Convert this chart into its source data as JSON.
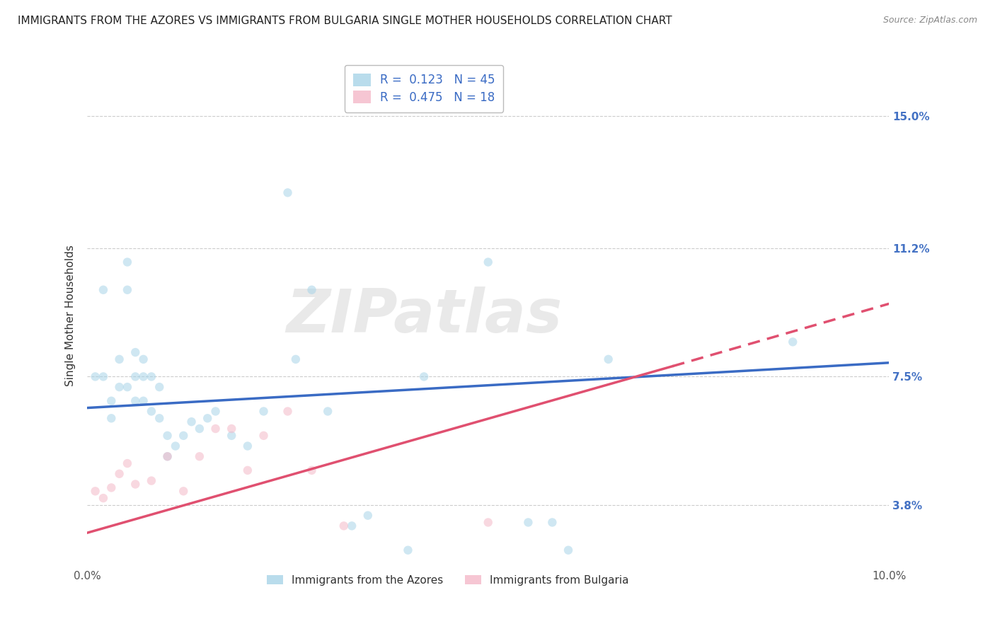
{
  "title": "IMMIGRANTS FROM THE AZORES VS IMMIGRANTS FROM BULGARIA SINGLE MOTHER HOUSEHOLDS CORRELATION CHART",
  "source": "Source: ZipAtlas.com",
  "ylabel": "Single Mother Households",
  "xlim": [
    0.0,
    0.1
  ],
  "ylim": [
    0.02,
    0.165
  ],
  "yticks": [
    0.038,
    0.075,
    0.112,
    0.15
  ],
  "ytick_labels": [
    "3.8%",
    "7.5%",
    "11.2%",
    "15.0%"
  ],
  "xticks": [
    0.0,
    0.02,
    0.04,
    0.06,
    0.08,
    0.1
  ],
  "watermark": "ZIPatlas",
  "legend_entries": [
    {
      "label": "R =  0.123   N = 45",
      "color": "#a8d4e8"
    },
    {
      "label": "R =  0.475   N = 18",
      "color": "#f4b8c8"
    }
  ],
  "series_azores": {
    "color": "#a8d4e8",
    "x": [
      0.001,
      0.002,
      0.002,
      0.003,
      0.003,
      0.004,
      0.004,
      0.005,
      0.005,
      0.005,
      0.006,
      0.006,
      0.006,
      0.007,
      0.007,
      0.007,
      0.008,
      0.008,
      0.009,
      0.009,
      0.01,
      0.01,
      0.011,
      0.012,
      0.013,
      0.014,
      0.015,
      0.016,
      0.018,
      0.02,
      0.022,
      0.025,
      0.026,
      0.028,
      0.03,
      0.033,
      0.035,
      0.04,
      0.042,
      0.05,
      0.055,
      0.058,
      0.06,
      0.065,
      0.088
    ],
    "y": [
      0.075,
      0.1,
      0.075,
      0.068,
      0.063,
      0.08,
      0.072,
      0.108,
      0.1,
      0.072,
      0.082,
      0.075,
      0.068,
      0.08,
      0.075,
      0.068,
      0.075,
      0.065,
      0.072,
      0.063,
      0.058,
      0.052,
      0.055,
      0.058,
      0.062,
      0.06,
      0.063,
      0.065,
      0.058,
      0.055,
      0.065,
      0.128,
      0.08,
      0.1,
      0.065,
      0.032,
      0.035,
      0.025,
      0.075,
      0.108,
      0.033,
      0.033,
      0.025,
      0.08,
      0.085
    ]
  },
  "series_bulgaria": {
    "color": "#f4b8c8",
    "x": [
      0.001,
      0.002,
      0.003,
      0.004,
      0.005,
      0.006,
      0.008,
      0.01,
      0.012,
      0.014,
      0.016,
      0.018,
      0.02,
      0.022,
      0.025,
      0.028,
      0.032,
      0.05
    ],
    "y": [
      0.042,
      0.04,
      0.043,
      0.047,
      0.05,
      0.044,
      0.045,
      0.052,
      0.042,
      0.052,
      0.06,
      0.06,
      0.048,
      0.058,
      0.065,
      0.048,
      0.032,
      0.033
    ]
  },
  "trend_azores": {
    "color": "#3a6bc4",
    "x_start": 0.0,
    "x_end": 0.1,
    "y_start": 0.066,
    "y_end": 0.079
  },
  "trend_bulgaria_solid": {
    "color": "#e05070",
    "x_start": 0.0,
    "x_end": 0.073,
    "y_start": 0.03,
    "y_end": 0.078
  },
  "trend_bulgaria_dashed": {
    "color": "#e05070",
    "x_start": 0.073,
    "x_end": 0.1,
    "y_start": 0.078,
    "y_end": 0.096
  },
  "background_color": "#ffffff",
  "grid_color": "#cccccc",
  "title_fontsize": 11,
  "axis_label_fontsize": 11,
  "tick_fontsize": 11,
  "scatter_size": 80,
  "scatter_alpha": 0.55
}
